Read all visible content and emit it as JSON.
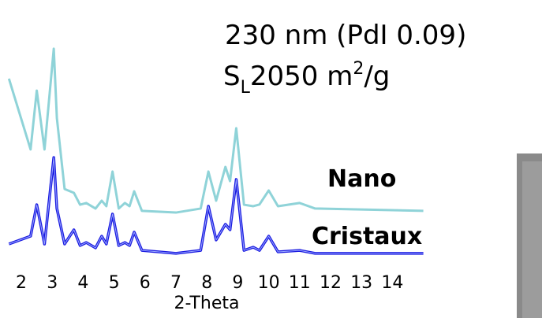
{
  "chart_data": {
    "type": "line",
    "annotations": [
      "230 nm (PdI 0.09)"
    ],
    "surface": {
      "symbol": "S",
      "subscript": "L",
      "value": "2050 m",
      "superscript": "2",
      "unit": "/g"
    },
    "x_label": "2-Theta",
    "x": [
      1.6,
      2.3,
      2.5,
      2.75,
      3.05,
      3.15,
      3.4,
      3.7,
      3.9,
      4.1,
      4.4,
      4.6,
      4.75,
      4.95,
      5.15,
      5.35,
      5.5,
      5.65,
      5.9,
      7,
      7.8,
      8.05,
      8.3,
      8.6,
      8.75,
      8.95,
      9.2,
      9.5,
      9.7,
      10.0,
      10.3,
      11.0,
      11.5,
      15.0
    ],
    "series": [
      {
        "name": "Nano",
        "color": "#8fd3d8",
        "values": [
          85.2,
          51.9,
          79.6,
          51.9,
          99.3,
          66.7,
          33.3,
          31.5,
          25.9,
          26.7,
          24.1,
          27.8,
          25.2,
          41.5,
          24.1,
          26.7,
          25.2,
          32.2,
          23.0,
          22.2,
          24.1,
          41.5,
          27.8,
          43.7,
          37.0,
          61.9,
          25.9,
          25.2,
          26.0,
          32.6,
          25.2,
          26.7,
          24.1,
          23.0
        ]
      },
      {
        "name": "Cristaux",
        "color": "#1a1ae0",
        "values": [
          7.4,
          11.1,
          25.9,
          7.4,
          48.1,
          24.1,
          7.4,
          14.1,
          6.7,
          8.1,
          5.6,
          11.1,
          7.4,
          21.5,
          6.7,
          8.1,
          6.7,
          13.0,
          4.4,
          3.0,
          4.4,
          25.2,
          9.3,
          16.7,
          14.1,
          37.8,
          4.4,
          5.9,
          4.4,
          11.1,
          3.7,
          4.4,
          3.0,
          3.0
        ]
      }
    ],
    "xlim": [
      1.6,
      15.1
    ],
    "ylim": [
      0,
      100
    ],
    "xticks": [
      2,
      3,
      4,
      5,
      6,
      7,
      8,
      9,
      10,
      11,
      12,
      13,
      14
    ]
  }
}
